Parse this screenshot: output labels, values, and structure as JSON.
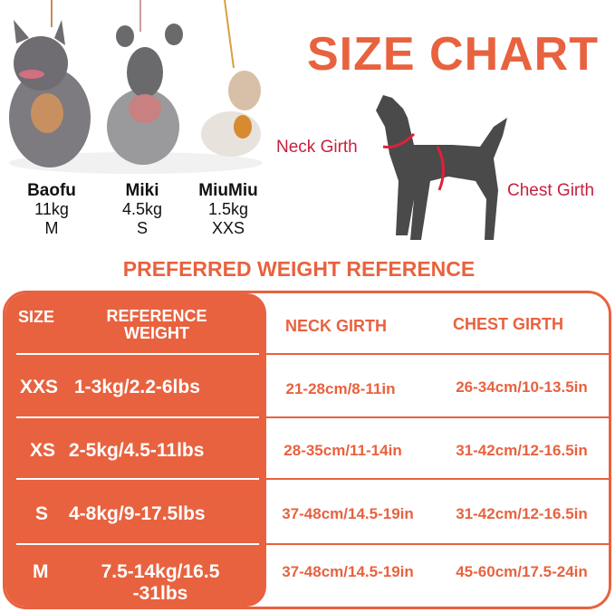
{
  "title": "SIZE CHART",
  "dogs": [
    {
      "name": "Baofu",
      "weight": "11kg",
      "size": "M"
    },
    {
      "name": "Miki",
      "weight": "4.5kg",
      "size": "S"
    },
    {
      "name": "MiuMiu",
      "weight": "1.5kg",
      "size": "XXS"
    }
  ],
  "diagram": {
    "neck_label": "Neck Girth",
    "chest_label": "Chest Girth"
  },
  "heading": "PREFERRED WEIGHT REFERENCE",
  "table": {
    "headers": {
      "size": "SIZE",
      "weight_1": "REFERENCE",
      "weight_2": "WEIGHT",
      "neck": "NECK GIRTH",
      "chest": "CHEST GIRTH"
    },
    "rows": [
      {
        "size": "XXS",
        "weight": "1-3kg/2.2-6lbs",
        "neck": "21-28cm/8-11in",
        "chest": "26-34cm/10-13.5in"
      },
      {
        "size": "XS",
        "weight": "2-5kg/4.5-11lbs",
        "neck": "28-35cm/11-14in",
        "chest": "31-42cm/12-16.5in"
      },
      {
        "size": "S",
        "weight": "4-8kg/9-17.5lbs",
        "neck": "37-48cm/14.5-19in",
        "chest": "31-42cm/12-16.5in"
      },
      {
        "size": "M",
        "weight": "7.5-14kg/16.5",
        "weight_2": "-31lbs",
        "neck": "37-48cm/14.5-19in",
        "chest": "45-60cm/17.5-24in"
      }
    ]
  },
  "colors": {
    "accent": "#e8623f",
    "girth": "#c8203f",
    "silhouette": "#4a4a4a"
  }
}
